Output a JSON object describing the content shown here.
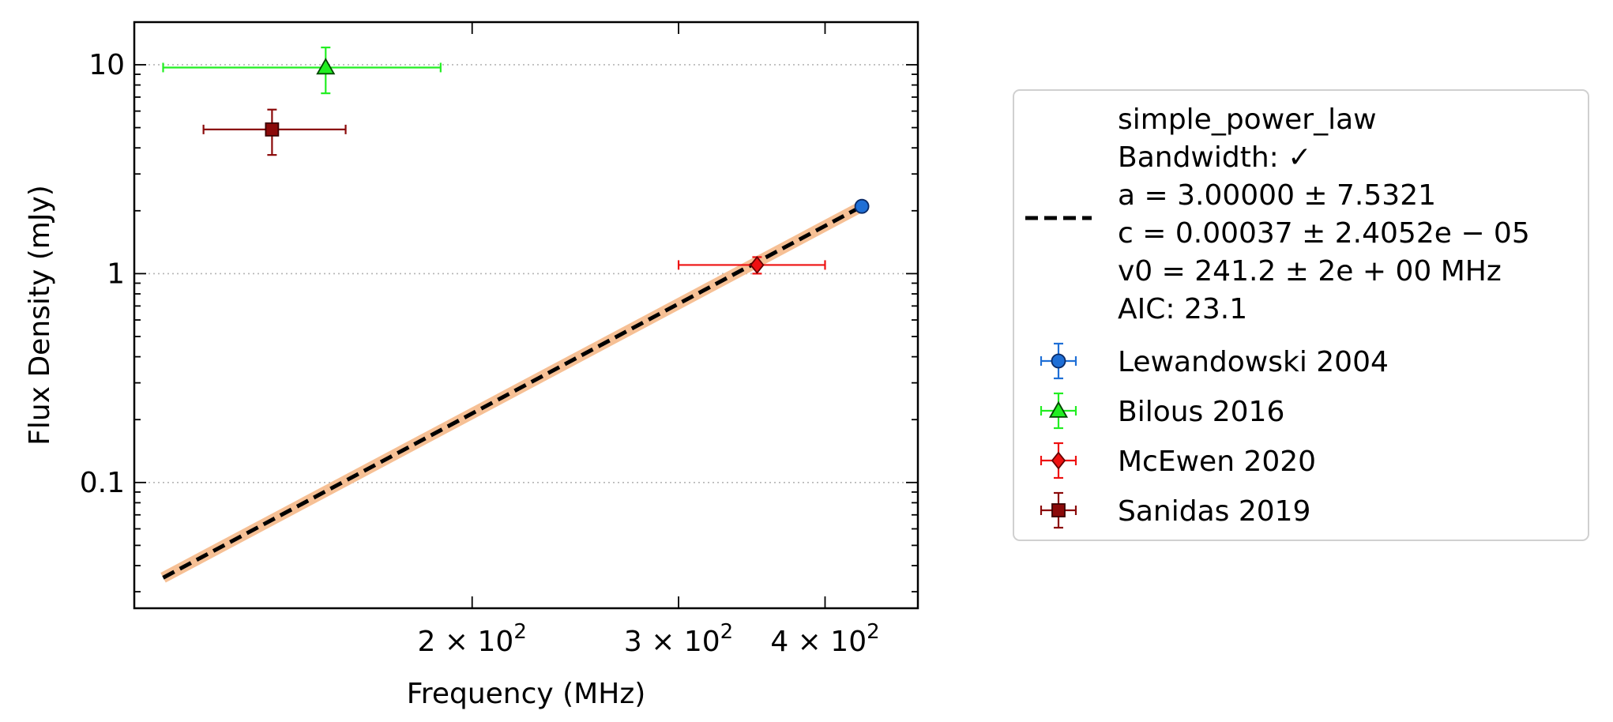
{
  "chart_data": {
    "type": "scatter",
    "title": "",
    "xlabel": "Frequency (MHz)",
    "ylabel": "Flux Density (mJy)",
    "xscale": "log",
    "yscale": "log",
    "xlim": [
      103,
      480
    ],
    "ylim": [
      0.025,
      16
    ],
    "x_ticks": [
      {
        "value": 200,
        "mant": "2",
        "exp": "2"
      },
      {
        "value": 300,
        "mant": "3",
        "exp": "2"
      },
      {
        "value": 400,
        "mant": "4",
        "exp": "2"
      }
    ],
    "y_ticks": [
      {
        "value": 0.1,
        "label": "0.1"
      },
      {
        "value": 1,
        "label": "1"
      },
      {
        "value": 10,
        "label": "10"
      }
    ],
    "grid": "horizontal dotted at major y ticks",
    "legend_position": "outside right",
    "fit": {
      "name": "simple_power_law",
      "x": [
        109,
        430
      ],
      "y": [
        0.035,
        2.1
      ],
      "line_color": "#000000",
      "band_color": "#f5b98a",
      "legend_lines": [
        "simple_power_law",
        "Bandwidth: ✓",
        "a = 3.00000 ± 7.5321",
        "c = 0.00037 ± 2.4052e − 05",
        "v0 = 241.2 ± 2e + 00 MHz",
        "AIC: 23.1"
      ]
    },
    "series": [
      {
        "name": "Lewandowski 2004",
        "marker": "circle",
        "color": "#1f6fd6",
        "edge": "#0a2a66",
        "x": 430,
        "y": 2.1,
        "xerr": [
          0,
          0
        ],
        "yerr": [
          0,
          0
        ]
      },
      {
        "name": "Bilous 2016",
        "marker": "triangle",
        "color": "#22ee22",
        "edge": "#004400",
        "x": 150,
        "y": 9.7,
        "xerr": [
          41,
          38
        ],
        "yerr": [
          2.4,
          2.4
        ]
      },
      {
        "name": "McEwen 2020",
        "marker": "diamond",
        "color": "#ee1111",
        "edge": "#660000",
        "x": 350,
        "y": 1.1,
        "xerr": [
          50,
          50
        ],
        "yerr": [
          0.1,
          0.1
        ]
      },
      {
        "name": "Sanidas 2019",
        "marker": "square",
        "color": "#8b0a0a",
        "edge": "#3a0000",
        "x": 135,
        "y": 4.9,
        "xerr": [
          17,
          21
        ],
        "yerr": [
          1.2,
          1.2
        ]
      }
    ]
  }
}
